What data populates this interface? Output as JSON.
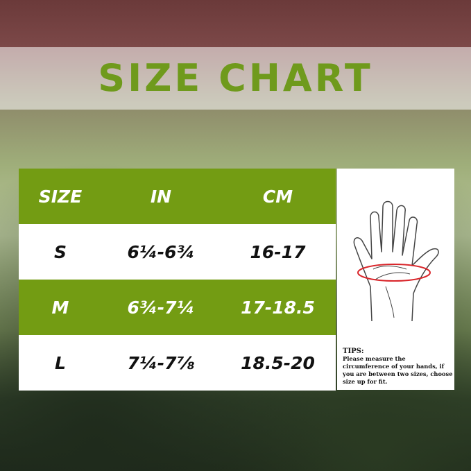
{
  "title": "SIZE CHART",
  "table": {
    "headers": [
      "SIZE",
      "IN",
      "CM"
    ],
    "rows": [
      {
        "size": "S",
        "in": "6¼-6¾",
        "cm": "16-17"
      },
      {
        "size": "M",
        "in": "6¾-7¼",
        "cm": "17-18.5"
      },
      {
        "size": "L",
        "in": "7¼-7⅞",
        "cm": "18.5-20"
      }
    ]
  },
  "tips": {
    "heading": "TIPS:",
    "text": "Please measure the circumference of your hands, if you are between two sizes, choose size up for fit."
  },
  "colors": {
    "accent": "#739c13",
    "title": "#6f9a1c",
    "measure_line": "#d9262b"
  },
  "icon": "hand-measure-icon"
}
